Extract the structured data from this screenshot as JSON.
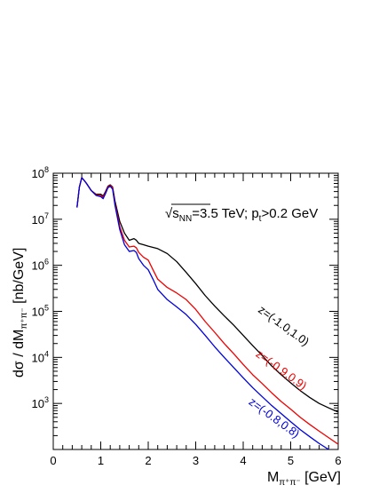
{
  "chart_data": {
    "type": "line",
    "title": "",
    "xlabel": "M_{π⁺π⁻} [GeV]",
    "xlabel_main": "M",
    "xlabel_sub": "π⁺π⁻",
    "xlabel_unit": " [GeV]",
    "ylabel": "dσ / dM_{π⁺π⁻} [nb/GeV]",
    "ylabel_pre": "dσ / dM",
    "ylabel_sub": "π⁺π⁻",
    "ylabel_unit": " [nb/GeV]",
    "annotation": {
      "sqrt": "√",
      "s": "s",
      "nn": "NN",
      "energy": "=3.5 TeV; p",
      "pt_sub": "t",
      "cut": ">0.2 GeV"
    },
    "xlim": [
      0,
      6
    ],
    "ylim": [
      100,
      100000000
    ],
    "yscale": "log",
    "xticks": [
      "0",
      "1",
      "2",
      "3",
      "4",
      "5",
      "6"
    ],
    "yticks": [
      {
        "value": 1000,
        "base": "10",
        "exp": "3"
      },
      {
        "value": 10000,
        "base": "10",
        "exp": "4"
      },
      {
        "value": 100000,
        "base": "10",
        "exp": "5"
      },
      {
        "value": 1000000,
        "base": "10",
        "exp": "6"
      },
      {
        "value": 10000000,
        "base": "10",
        "exp": "7"
      },
      {
        "value": 100000000,
        "base": "10",
        "exp": "8"
      }
    ],
    "series": [
      {
        "name": "z=(-1.0,1.0)",
        "color": "#000000",
        "label_at": [
          4.3,
          100000
        ],
        "label_rotation": -36,
        "points": [
          [
            0.5,
            18000000.0
          ],
          [
            0.55,
            50000000.0
          ],
          [
            0.6,
            80000000.0
          ],
          [
            0.65,
            70000000.0
          ],
          [
            0.7,
            60000000.0
          ],
          [
            0.8,
            42000000.0
          ],
          [
            0.9,
            35000000.0
          ],
          [
            1.0,
            35000000.0
          ],
          [
            1.05,
            32000000.0
          ],
          [
            1.1,
            40000000.0
          ],
          [
            1.15,
            52000000.0
          ],
          [
            1.2,
            56000000.0
          ],
          [
            1.25,
            50000000.0
          ],
          [
            1.3,
            25000000.0
          ],
          [
            1.4,
            9000000.0
          ],
          [
            1.5,
            5000000.0
          ],
          [
            1.6,
            3500000.0
          ],
          [
            1.7,
            3800000.0
          ],
          [
            1.75,
            3500000.0
          ],
          [
            1.8,
            3000000.0
          ],
          [
            1.9,
            2800000.0
          ],
          [
            2.0,
            2600000.0
          ],
          [
            2.2,
            2300000.0
          ],
          [
            2.4,
            1800000.0
          ],
          [
            2.6,
            1200000.0
          ],
          [
            2.8,
            700000.0
          ],
          [
            3.0,
            400000.0
          ],
          [
            3.2,
            220000.0
          ],
          [
            3.4,
            130000.0
          ],
          [
            3.6,
            80000.0
          ],
          [
            3.8,
            50000.0
          ],
          [
            4.0,
            30000.0
          ],
          [
            4.2,
            18000.0
          ],
          [
            4.4,
            11000.0
          ],
          [
            4.6,
            6500.0
          ],
          [
            4.8,
            4200.0
          ],
          [
            5.0,
            2800.0
          ],
          [
            5.2,
            1900.0
          ],
          [
            5.4,
            1350.0
          ],
          [
            5.6,
            1000.0
          ],
          [
            5.8,
            800.0
          ],
          [
            6.0,
            650.0
          ]
        ]
      },
      {
        "name": "z=(-0.9,0.9)",
        "color": "#ee0000",
        "label_at": [
          4.25,
          11000
        ],
        "label_rotation": -36,
        "points": [
          [
            0.5,
            18000000.0
          ],
          [
            0.55,
            50000000.0
          ],
          [
            0.6,
            80000000.0
          ],
          [
            0.65,
            70000000.0
          ],
          [
            0.7,
            60000000.0
          ],
          [
            0.8,
            42000000.0
          ],
          [
            0.9,
            34000000.0
          ],
          [
            1.0,
            33000000.0
          ],
          [
            1.05,
            30000000.0
          ],
          [
            1.1,
            38000000.0
          ],
          [
            1.15,
            50000000.0
          ],
          [
            1.2,
            54000000.0
          ],
          [
            1.25,
            48000000.0
          ],
          [
            1.3,
            22000000.0
          ],
          [
            1.4,
            7000000.0
          ],
          [
            1.5,
            3500000.0
          ],
          [
            1.6,
            2500000.0
          ],
          [
            1.7,
            2600000.0
          ],
          [
            1.75,
            2400000.0
          ],
          [
            1.8,
            1900000.0
          ],
          [
            1.9,
            1500000.0
          ],
          [
            2.0,
            1300000.0
          ],
          [
            2.1,
            800000.0
          ],
          [
            2.2,
            500000.0
          ],
          [
            2.4,
            330000.0
          ],
          [
            2.6,
            250000.0
          ],
          [
            2.8,
            180000.0
          ],
          [
            3.0,
            110000.0
          ],
          [
            3.2,
            60000.0
          ],
          [
            3.4,
            35000.0
          ],
          [
            3.6,
            20000.0
          ],
          [
            3.8,
            12000.0
          ],
          [
            4.0,
            7000.0
          ],
          [
            4.2,
            4200.0
          ],
          [
            4.4,
            2700.0
          ],
          [
            4.6,
            1700.0
          ],
          [
            4.8,
            1100.0
          ],
          [
            5.0,
            750.0
          ],
          [
            5.2,
            500.0
          ],
          [
            5.4,
            350.0
          ],
          [
            5.6,
            250.0
          ],
          [
            5.8,
            180.0
          ],
          [
            6.0,
            130.0
          ]
        ]
      },
      {
        "name": "z=(-0.8,0.8)",
        "color": "#0000dd",
        "label_at": [
          4.1,
          1000
        ],
        "label_rotation": -36,
        "points": [
          [
            0.5,
            18000000.0
          ],
          [
            0.55,
            50000000.0
          ],
          [
            0.6,
            80000000.0
          ],
          [
            0.65,
            70000000.0
          ],
          [
            0.7,
            60000000.0
          ],
          [
            0.8,
            42000000.0
          ],
          [
            0.9,
            33000000.0
          ],
          [
            1.0,
            31000000.0
          ],
          [
            1.05,
            28000000.0
          ],
          [
            1.1,
            36000000.0
          ],
          [
            1.15,
            48000000.0
          ],
          [
            1.2,
            52000000.0
          ],
          [
            1.25,
            45000000.0
          ],
          [
            1.3,
            20000000.0
          ],
          [
            1.4,
            6000000.0
          ],
          [
            1.5,
            2800000.0
          ],
          [
            1.6,
            2000000.0
          ],
          [
            1.7,
            2100000.0
          ],
          [
            1.75,
            1900000.0
          ],
          [
            1.8,
            1400000.0
          ],
          [
            1.9,
            1000000.0
          ],
          [
            2.0,
            800000.0
          ],
          [
            2.1,
            500000.0
          ],
          [
            2.2,
            300000.0
          ],
          [
            2.4,
            180000.0
          ],
          [
            2.6,
            125000.0
          ],
          [
            2.8,
            85000.0
          ],
          [
            3.0,
            52000.0
          ],
          [
            3.2,
            30000.0
          ],
          [
            3.4,
            17000.0
          ],
          [
            3.6,
            10000.0
          ],
          [
            3.8,
            6000.0
          ],
          [
            4.0,
            3600.0
          ],
          [
            4.2,
            2200.0
          ],
          [
            4.4,
            1400.0
          ],
          [
            4.6,
            900.0
          ],
          [
            4.8,
            600.0
          ],
          [
            5.0,
            400.0
          ],
          [
            5.2,
            270.0
          ],
          [
            5.4,
            190.0
          ],
          [
            5.6,
            135.0
          ],
          [
            5.8,
            100.0
          ],
          [
            6.0,
            80.0
          ]
        ]
      }
    ]
  }
}
